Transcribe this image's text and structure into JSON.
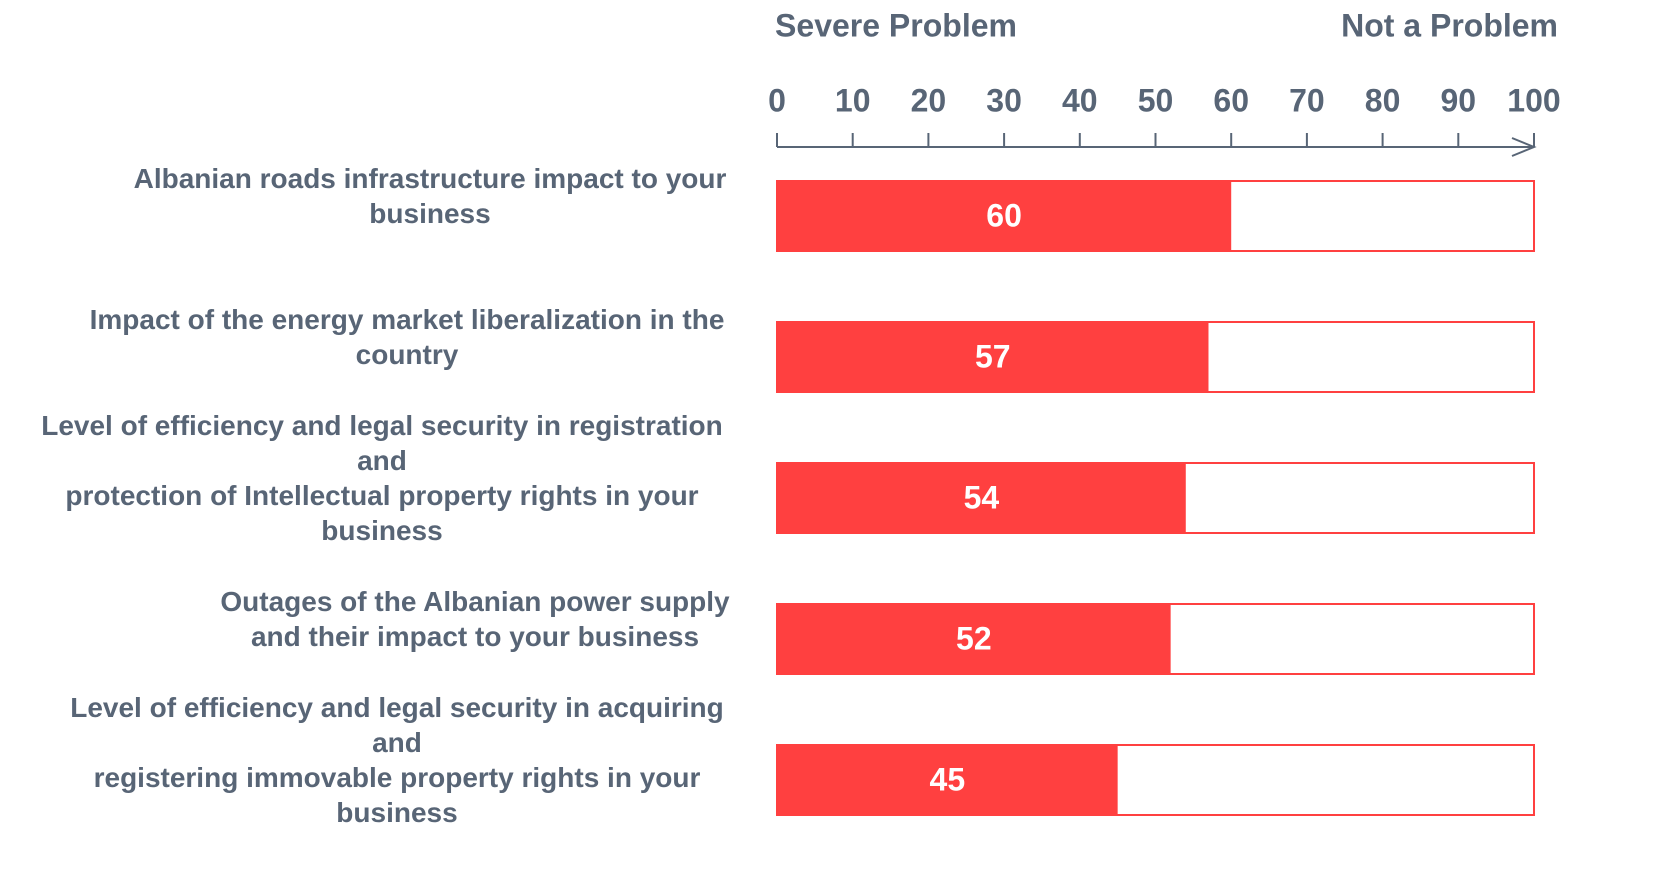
{
  "chart_data": {
    "type": "bar",
    "orientation": "horizontal",
    "annotations": [
      "Severe Problem",
      "Not a Problem"
    ],
    "categories": [
      [
        "Albanian roads infrastructure impact to your",
        "business"
      ],
      [
        "Impact of the energy market liberalization in the",
        "country"
      ],
      [
        "Level of efficiency and legal security in registration",
        "and",
        "protection of Intellectual property rights in your",
        "business"
      ],
      [
        "Outages of the Albanian power supply",
        "and their impact to your business"
      ],
      [
        "Level of efficiency and legal security in acquiring",
        "and",
        "registering immovable property rights in your",
        "business"
      ]
    ],
    "values": [
      60,
      57,
      54,
      52,
      45
    ],
    "color": "#ff4040",
    "xlim": [
      0,
      100
    ],
    "xticks": [
      0,
      10,
      20,
      30,
      40,
      50,
      60,
      70,
      80,
      90,
      100
    ]
  }
}
